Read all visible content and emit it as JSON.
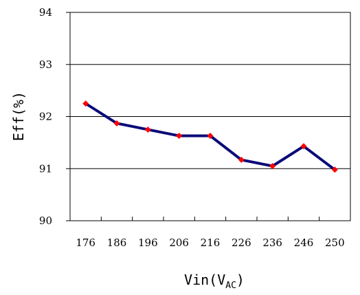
{
  "chart_data": {
    "type": "line",
    "categories": [
      "176",
      "186",
      "196",
      "206",
      "216",
      "226",
      "236",
      "246",
      "250"
    ],
    "series": [
      {
        "values": [
          92.25,
          91.87,
          91.75,
          91.63,
          91.63,
          91.17,
          91.05,
          91.43,
          90.98
        ],
        "color": "#0a0a78",
        "marker_color": "#ff0000"
      }
    ],
    "ylabel": "Eff(%)",
    "xlabel": {
      "main": "Vin(V",
      "sub": "AC",
      "close": ")"
    },
    "ylim": [
      90,
      94
    ],
    "yticks": [
      90,
      91,
      92,
      93,
      94
    ],
    "grid": "horizontal"
  }
}
